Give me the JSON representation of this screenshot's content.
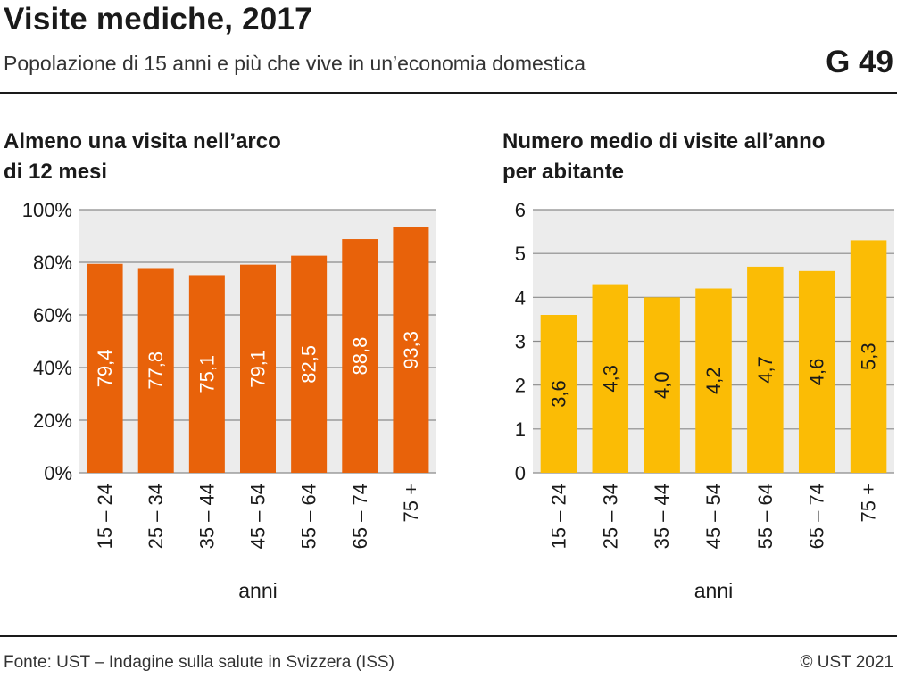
{
  "header": {
    "title": "Visite mediche, 2017",
    "subtitle": "Popolazione di 15 anni e più che vive in un’economia domestica",
    "code": "G 49"
  },
  "footer": {
    "source": "Fonte: UST – Indagine sulla salute in Svizzera (ISS)",
    "copyright": "© UST 2021"
  },
  "chart_data": [
    {
      "type": "bar",
      "title": "Almeno una visita nell’arco di 12 mesi",
      "title_lines": [
        "Almeno una visita nell’arco",
        "di 12 mesi"
      ],
      "categories": [
        "15 – 24",
        "25 – 34",
        "35 – 44",
        "45 – 54",
        "55 – 64",
        "65 – 74",
        "75 +"
      ],
      "values": [
        79.4,
        77.8,
        75.1,
        79.1,
        82.5,
        88.8,
        93.3
      ],
      "value_labels": [
        "79,4",
        "77,8",
        "75,1",
        "79,1",
        "82,5",
        "88,8",
        "93,3"
      ],
      "xlabel": "anni",
      "ylabel": "",
      "ylim": [
        0,
        100
      ],
      "yticks": [
        0,
        20,
        40,
        60,
        80,
        100
      ],
      "ytick_labels": [
        "0%",
        "20%",
        "40%",
        "60%",
        "80%",
        "100%"
      ],
      "grid": true,
      "bar_color": "#e8620a",
      "label_color": "#ffffff"
    },
    {
      "type": "bar",
      "title": "Numero medio di visite all’anno per abitante",
      "title_lines": [
        "Numero medio di visite all’anno",
        "per abitante"
      ],
      "categories": [
        "15 – 24",
        "25 – 34",
        "35 – 44",
        "45 – 54",
        "55 – 64",
        "65 – 74",
        "75 +"
      ],
      "values": [
        3.6,
        4.3,
        4.0,
        4.2,
        4.7,
        4.6,
        5.3
      ],
      "value_labels": [
        "3,6",
        "4,3",
        "4,0",
        "4,2",
        "4,7",
        "4,6",
        "5,3"
      ],
      "xlabel": "anni",
      "ylabel": "",
      "ylim": [
        0,
        6
      ],
      "yticks": [
        0,
        1,
        2,
        3,
        4,
        5,
        6
      ],
      "ytick_labels": [
        "0",
        "1",
        "2",
        "3",
        "4",
        "5",
        "6"
      ],
      "grid": true,
      "bar_color": "#fbbc05",
      "label_color": "#1a1a1a"
    }
  ],
  "colors": {
    "plot_background": "#ececec",
    "gridline": "#8a8a8a",
    "text": "#1a1a1a"
  }
}
